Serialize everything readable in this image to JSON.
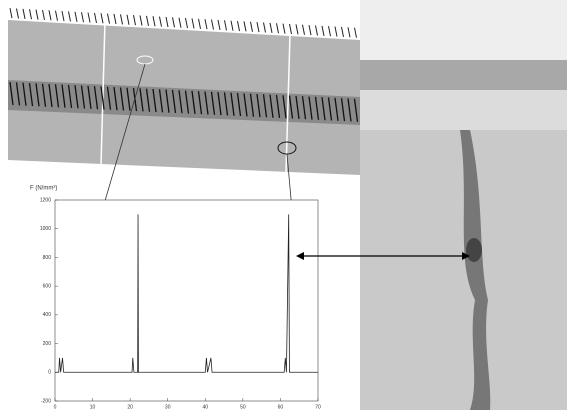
{
  "chart_data": {
    "type": "line",
    "y_label": "F (N/mm²)",
    "x": [
      0,
      1,
      1.2,
      1.5,
      2,
      2.3,
      20.5,
      20.7,
      21,
      22,
      22.1,
      22.2,
      40,
      40.3,
      40.6,
      41.5,
      41.8,
      61,
      61.3,
      61.6,
      62.2,
      62.4,
      70
    ],
    "series": [
      {
        "color": "#222",
        "values": [
          0,
          0,
          100,
          0,
          100,
          0,
          0,
          100,
          0,
          0,
          1100,
          0,
          0,
          100,
          0,
          100,
          0,
          0,
          100,
          0,
          1100,
          0,
          0
        ]
      }
    ],
    "xlim": [
      0,
      70
    ],
    "xticks": [
      0,
      10,
      20,
      30,
      40,
      50,
      60,
      70
    ],
    "ylim": [
      -200,
      1200
    ],
    "yticks": [
      -200,
      0,
      200,
      400,
      600,
      800,
      1000,
      1200
    ]
  }
}
